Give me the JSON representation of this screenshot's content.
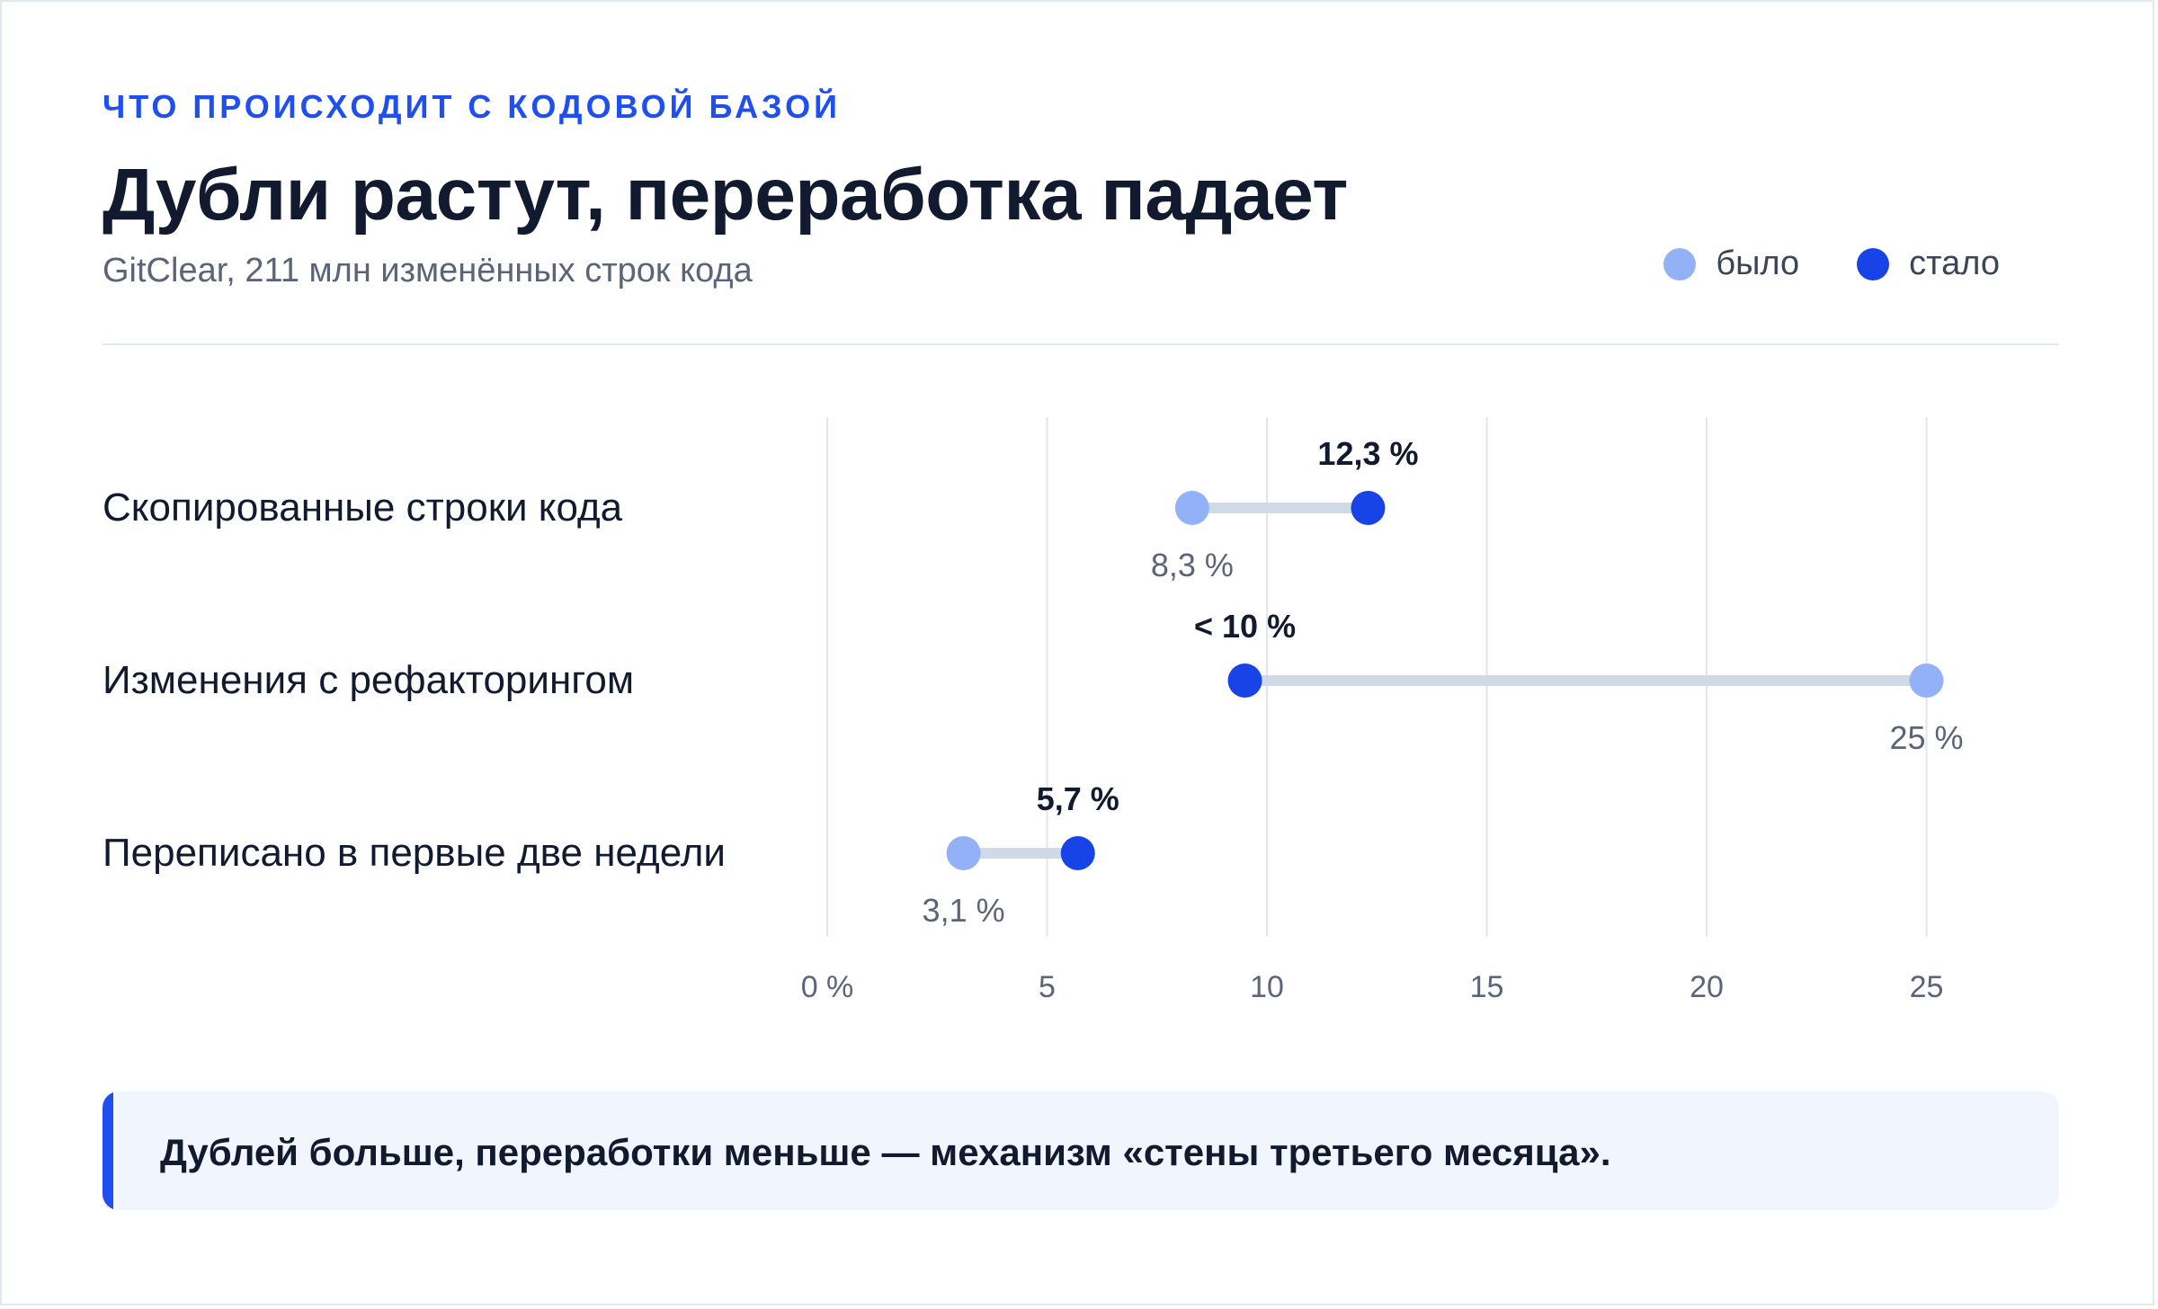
{
  "header": {
    "eyebrow": "ЧТО ПРОИСХОДИТ С КОДОВОЙ БАЗОЙ",
    "title": "Дубли растут, переработка падает",
    "subtitle": "GitClear, 211 млн изменённых строк кода"
  },
  "legend": {
    "before_label": "было",
    "after_label": "стало"
  },
  "colors": {
    "before": "#93b1f7",
    "after": "#1843e6",
    "connector": "#d0dae6",
    "grid": "#e2e5f0",
    "accent": "#1f4ff0"
  },
  "chart_data": {
    "type": "dumbbell",
    "xlim": [
      0,
      25
    ],
    "ticks": [
      0,
      5,
      10,
      15,
      20,
      25
    ],
    "tick_labels": [
      "0 %",
      "5",
      "10",
      "15",
      "20",
      "25"
    ],
    "series": [
      {
        "name": "было",
        "values": [
          8.3,
          25,
          3.1
        ]
      },
      {
        "name": "стало",
        "values": [
          12.3,
          9.5,
          5.7
        ]
      }
    ],
    "rows": [
      {
        "label": "Скопированные строки кода",
        "before": 8.3,
        "after": 12.3,
        "before_label": "8,3 %",
        "after_label": "12,3 %"
      },
      {
        "label": "Изменения с рефакторингом",
        "before": 25,
        "after": 9.5,
        "before_label": "25 %",
        "after_label": "< 10 %"
      },
      {
        "label": "Переписано в первые две недели",
        "before": 3.1,
        "after": 5.7,
        "before_label": "3,1 %",
        "after_label": "5,7 %"
      }
    ]
  },
  "callout": {
    "text": "Дублей больше, переработки меньше — механизм «стены третьего месяца»."
  }
}
